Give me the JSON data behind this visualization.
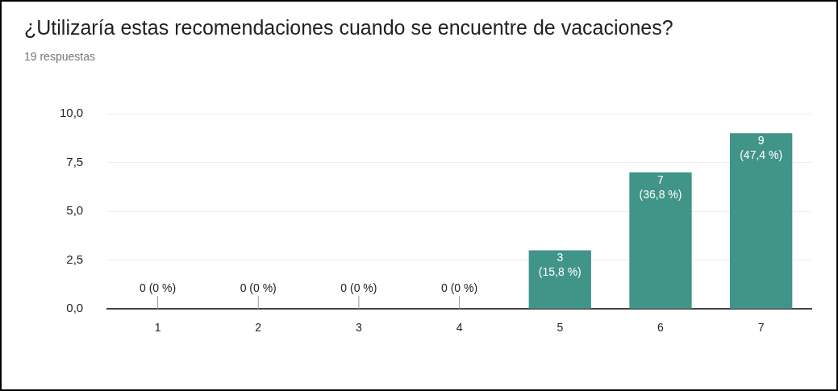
{
  "chart_data": {
    "type": "bar",
    "title": "¿Utilizaría estas recomendaciones cuando se encuentre de vacaciones?",
    "subtitle": "19 respuestas",
    "categories": [
      "1",
      "2",
      "3",
      "4",
      "5",
      "6",
      "7"
    ],
    "values": [
      0,
      0,
      0,
      0,
      3,
      7,
      9
    ],
    "color": "#419488",
    "value_labels": [
      "0 (0 %)",
      "0 (0 %)",
      "0 (0 %)",
      "0 (0 %)",
      "3\n(15,8 %)",
      "7\n(36,8 %)",
      "9\n(47,4 %)"
    ],
    "ylim": [
      0,
      10
    ],
    "yticks": [
      {
        "value": 0,
        "label": "0,0"
      },
      {
        "value": 2.5,
        "label": "2,5"
      },
      {
        "value": 5,
        "label": "5,0"
      },
      {
        "value": 7.5,
        "label": "7,5"
      },
      {
        "value": 10,
        "label": "10,0"
      }
    ],
    "grid": "y",
    "legend": false
  }
}
